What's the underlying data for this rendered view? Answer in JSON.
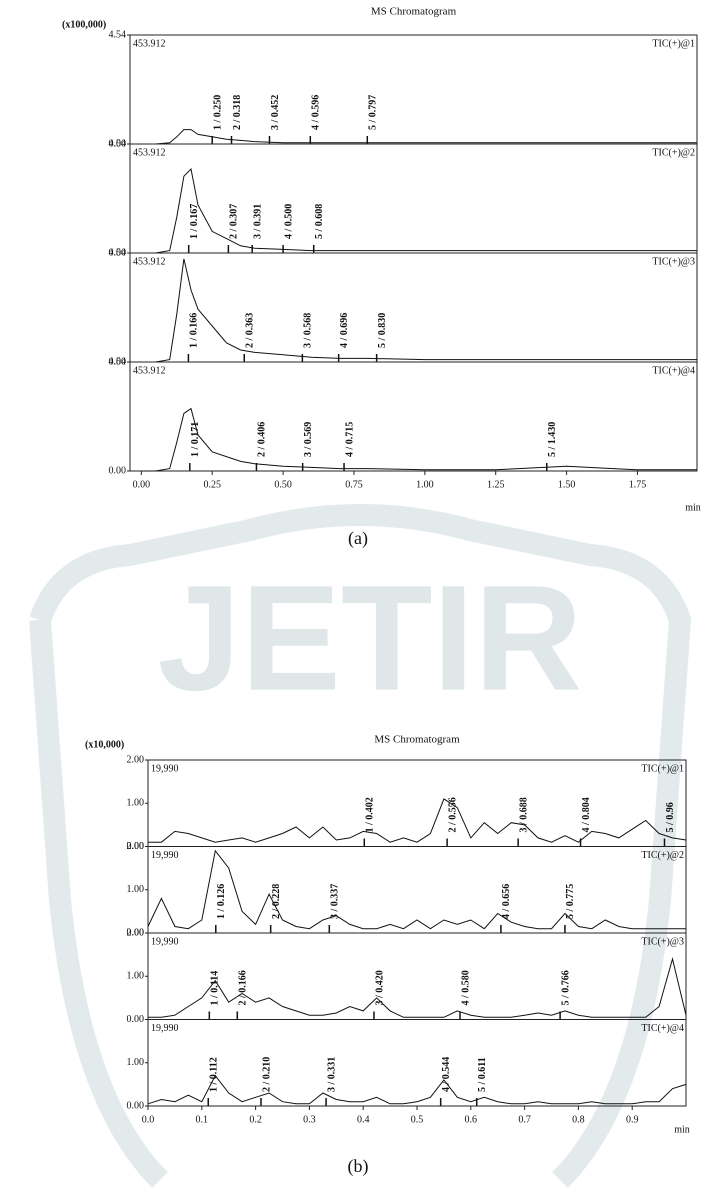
{
  "watermark": "JETIR",
  "chart_data": [
    {
      "type": "line",
      "title": "MS Chromatogram",
      "y_unit": "(x100,000)",
      "x_label": "min",
      "caption": "(a)",
      "xlim": [
        -0.04,
        1.96
      ],
      "xticks": [
        {
          "value": 0,
          "label": "0.00"
        },
        0.25,
        {
          "value": 0.5,
          "label": "0.50"
        },
        0.75,
        {
          "value": 1,
          "label": "1.00"
        },
        1.25,
        {
          "value": 1.5,
          "label": "1.50"
        },
        1.75
      ],
      "x": [
        0,
        0.05,
        0.1,
        0.125,
        0.15,
        0.175,
        0.2,
        0.25,
        0.3,
        0.35,
        0.4,
        0.5,
        0.6,
        0.7,
        0.8,
        1.0,
        1.25,
        1.5,
        1.75,
        1.96
      ],
      "panels": [
        {
          "label": "453.912",
          "trace": "TIC(+)@1",
          "ylim": [
            0,
            4.54
          ],
          "yticks": [
            {
              "value": 0,
              "label": "0.00"
            },
            4.54
          ],
          "values": [
            0,
            0,
            0.05,
            0.3,
            0.6,
            0.6,
            0.4,
            0.3,
            0.2,
            0.15,
            0.1,
            0.05,
            0.05,
            0.05,
            0.05,
            0.05,
            0.05,
            0.05,
            0.05,
            0.05
          ],
          "peaks": [
            {
              "value": 0.25,
              "label": "1 / 0.250"
            },
            {
              "value": 0.318,
              "label": "2 / 0.318"
            },
            {
              "value": 0.452,
              "label": "3 / 0.452"
            },
            {
              "value": 0.596,
              "label": "4 / 0.596"
            },
            {
              "value": 0.797,
              "label": "5 / 0.797"
            }
          ]
        },
        {
          "label": "453.912",
          "trace": "TIC(+)@2",
          "ylim": [
            0,
            4.54
          ],
          "yticks": [
            {
              "value": 0,
              "label": "0.00"
            },
            4.54
          ],
          "values": [
            0,
            0,
            0.1,
            1.5,
            3.2,
            3.5,
            2.0,
            0.9,
            0.6,
            0.3,
            0.2,
            0.15,
            0.1,
            0.1,
            0.1,
            0.1,
            0.1,
            0.1,
            0.1,
            0.1
          ],
          "peaks": [
            {
              "value": 0.167,
              "label": "1 / 0.167"
            },
            {
              "value": 0.307,
              "label": "2 / 0.307"
            },
            {
              "value": 0.391,
              "label": "3 / 0.391"
            },
            {
              "value": 0.5,
              "label": "4 / 0.500"
            },
            {
              "value": 0.608,
              "label": "5 / 0.608"
            }
          ]
        },
        {
          "label": "453.912",
          "trace": "TIC(+)@3",
          "ylim": [
            0,
            4.54
          ],
          "yticks": [
            {
              "value": 0,
              "label": "0.00"
            },
            4.54
          ],
          "values": [
            0,
            0,
            0.1,
            2.0,
            4.3,
            3.0,
            2.2,
            1.5,
            0.8,
            0.5,
            0.4,
            0.3,
            0.2,
            0.15,
            0.15,
            0.1,
            0.1,
            0.1,
            0.1,
            0.1
          ],
          "peaks": [
            {
              "value": 0.166,
              "label": "1 / 0.166"
            },
            {
              "value": 0.363,
              "label": "2 / 0.363"
            },
            {
              "value": 0.568,
              "label": "3 / 0.568"
            },
            {
              "value": 0.696,
              "label": "4 / 0.696"
            },
            {
              "value": 0.83,
              "label": "5 / 0.830"
            }
          ]
        },
        {
          "label": "453.912",
          "trace": "TIC(+)@4",
          "ylim": [
            0,
            4.54
          ],
          "yticks": [
            {
              "value": 0,
              "label": "0.00"
            },
            4.54
          ],
          "values": [
            0,
            0,
            0.1,
            1.2,
            2.4,
            2.6,
            1.5,
            0.8,
            0.6,
            0.4,
            0.3,
            0.2,
            0.15,
            0.1,
            0.1,
            0.05,
            0.05,
            0.2,
            0.05,
            0.05
          ],
          "peaks": [
            {
              "value": 0.171,
              "label": "1 / 0.171"
            },
            {
              "value": 0.406,
              "label": "2 / 0.406"
            },
            {
              "value": 0.569,
              "label": "3 / 0.569"
            },
            {
              "value": 0.715,
              "label": "4 / 0.715"
            },
            {
              "value": 1.43,
              "label": "5 / 1.430"
            }
          ]
        }
      ]
    },
    {
      "type": "line",
      "title": "MS Chromatogram",
      "y_unit": "(x10,000)",
      "x_label": "min",
      "caption": "(b)",
      "xlim": [
        0,
        1.0
      ],
      "xticks": [
        {
          "value": 0,
          "label": "0.0"
        },
        0.1,
        0.2,
        0.3,
        0.4,
        0.5,
        0.6,
        0.7,
        0.8,
        0.9
      ],
      "x": [
        0,
        0.025,
        0.05,
        0.075,
        0.1,
        0.125,
        0.15,
        0.175,
        0.2,
        0.225,
        0.25,
        0.275,
        0.3,
        0.325,
        0.35,
        0.375,
        0.4,
        0.425,
        0.45,
        0.475,
        0.5,
        0.525,
        0.55,
        0.575,
        0.6,
        0.625,
        0.65,
        0.675,
        0.7,
        0.725,
        0.75,
        0.775,
        0.8,
        0.825,
        0.85,
        0.875,
        0.9,
        0.925,
        0.95,
        0.975,
        1.0
      ],
      "panels": [
        {
          "label": "19,990",
          "trace": "TIC(+)@1",
          "ylim": [
            0,
            2
          ],
          "yticks": [
            {
              "value": 0,
              "label": "0.00"
            },
            {
              "value": 1,
              "label": "1.00"
            },
            {
              "value": 2,
              "label": "2.00"
            }
          ],
          "values": [
            0.1,
            0.1,
            0.35,
            0.3,
            0.2,
            0.1,
            0.15,
            0.2,
            0.1,
            0.2,
            0.3,
            0.45,
            0.2,
            0.45,
            0.15,
            0.2,
            0.35,
            0.3,
            0.1,
            0.2,
            0.1,
            0.3,
            1.1,
            0.9,
            0.2,
            0.55,
            0.3,
            0.55,
            0.5,
            0.2,
            0.1,
            0.25,
            0.1,
            0.35,
            0.3,
            0.2,
            0.4,
            0.6,
            0.3,
            0.2,
            0.15
          ],
          "peaks": [
            {
              "value": 0.402,
              "label": "1 / 0.402"
            },
            {
              "value": 0.556,
              "label": "2 / 0.556"
            },
            {
              "value": 0.688,
              "label": "3 / 0.688"
            },
            {
              "value": 0.804,
              "label": "4 / 0.804"
            },
            {
              "value": 0.96,
              "label": "5 / 0.96"
            }
          ]
        },
        {
          "label": "19,990",
          "trace": "TIC(+)@2",
          "ylim": [
            0,
            2
          ],
          "yticks": [
            {
              "value": 0,
              "label": "0.00"
            },
            {
              "value": 1,
              "label": "1.00"
            },
            {
              "value": 2,
              "label": "2.00"
            }
          ],
          "values": [
            0.15,
            0.8,
            0.15,
            0.1,
            0.3,
            1.9,
            1.5,
            0.5,
            0.2,
            0.9,
            0.3,
            0.15,
            0.1,
            0.3,
            0.4,
            0.2,
            0.1,
            0.1,
            0.2,
            0.1,
            0.3,
            0.1,
            0.3,
            0.2,
            0.3,
            0.1,
            0.45,
            0.25,
            0.15,
            0.1,
            0.1,
            0.45,
            0.15,
            0.1,
            0.3,
            0.15,
            0.1,
            0.1,
            0.1,
            0.1,
            0.1
          ],
          "peaks": [
            {
              "value": 0.126,
              "label": "1 / 0.126"
            },
            {
              "value": 0.228,
              "label": "2 / 0.228"
            },
            {
              "value": 0.337,
              "label": "3 / 0.337"
            },
            {
              "value": 0.656,
              "label": "4 / 0.656"
            },
            {
              "value": 0.775,
              "label": "5 / 0.775"
            }
          ]
        },
        {
          "label": "19,990",
          "trace": "TIC(+)@3",
          "ylim": [
            0,
            2
          ],
          "yticks": [
            {
              "value": 0,
              "label": "0.00"
            },
            {
              "value": 1,
              "label": "1.00"
            },
            {
              "value": 2,
              "label": "2.00"
            }
          ],
          "values": [
            0.05,
            0.05,
            0.1,
            0.3,
            0.5,
            0.9,
            0.4,
            0.6,
            0.4,
            0.5,
            0.3,
            0.2,
            0.1,
            0.1,
            0.15,
            0.3,
            0.2,
            0.5,
            0.2,
            0.05,
            0.05,
            0.05,
            0.05,
            0.2,
            0.1,
            0.05,
            0.05,
            0.05,
            0.1,
            0.15,
            0.1,
            0.2,
            0.1,
            0.05,
            0.05,
            0.05,
            0.05,
            0.05,
            0.3,
            1.4,
            0.1
          ],
          "peaks": [
            {
              "value": 0.114,
              "label": "1 / 0.114"
            },
            {
              "value": 0.166,
              "label": "2 / 0.166"
            },
            {
              "value": 0.42,
              "label": "3 / 0.420"
            },
            {
              "value": 0.58,
              "label": "4 / 0.580"
            },
            {
              "value": 0.766,
              "label": "5 / 0.766"
            }
          ]
        },
        {
          "label": "19,990",
          "trace": "TIC(+)@4",
          "ylim": [
            0,
            2
          ],
          "yticks": [
            {
              "value": 0,
              "label": "0.00"
            },
            {
              "value": 1,
              "label": "1.00"
            }
          ],
          "values": [
            0.05,
            0.15,
            0.1,
            0.25,
            0.1,
            0.7,
            0.3,
            0.1,
            0.2,
            0.3,
            0.1,
            0.05,
            0.05,
            0.3,
            0.15,
            0.1,
            0.1,
            0.2,
            0.05,
            0.05,
            0.1,
            0.2,
            0.6,
            0.2,
            0.1,
            0.2,
            0.1,
            0.05,
            0.05,
            0.1,
            0.05,
            0.05,
            0.05,
            0.1,
            0.05,
            0.05,
            0.05,
            0.1,
            0.1,
            0.4,
            0.5
          ],
          "peaks": [
            {
              "value": 0.112,
              "label": "1 / 0.112"
            },
            {
              "value": 0.21,
              "label": "2 / 0.210"
            },
            {
              "value": 0.331,
              "label": "3 / 0.331"
            },
            {
              "value": 0.544,
              "label": "4 / 0.544"
            },
            {
              "value": 0.611,
              "label": "5 / 0.611"
            }
          ]
        }
      ]
    }
  ]
}
